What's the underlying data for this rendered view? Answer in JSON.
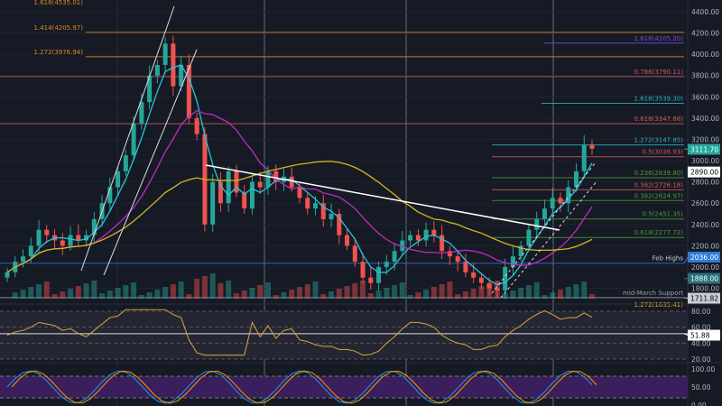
{
  "chart_data": {
    "type": "candlestick",
    "price_axis": {
      "ticks": [
        4400,
        4200,
        4000,
        3800,
        3600,
        3400,
        3200,
        3000,
        2800,
        2600,
        2400,
        2200,
        2000,
        1800
      ],
      "range": [
        1680,
        4500
      ]
    },
    "closes": [
      1950,
      2050,
      2100,
      2200,
      2350,
      2300,
      2250,
      2200,
      2300,
      2250,
      2300,
      2450,
      2600,
      2750,
      2900,
      3050,
      3350,
      3550,
      3800,
      3900,
      4100,
      3700,
      3900,
      3400,
      3250,
      2400,
      2800,
      2600,
      2900,
      2700,
      2550,
      2800,
      2750,
      2900,
      2800,
      2850,
      2750,
      2650,
      2550,
      2600,
      2450,
      2500,
      2300,
      2200,
      2050,
      1900,
      1850,
      2000,
      2050,
      2150,
      2250,
      2300,
      2250,
      2350,
      2300,
      2150,
      2100,
      2050,
      1950,
      1900,
      1850,
      1800,
      1780,
      2000,
      2100,
      2200,
      2350,
      2450,
      2550,
      2650,
      2600,
      2750,
      2900,
      3150,
      3111.7
    ],
    "levels": [
      {
        "label": "1.618(4535.01)",
        "price": 4535.01,
        "color": "#e08a1e"
      },
      {
        "label": "1.414(4205.97)",
        "price": 4205.97,
        "color": "#e08a1e"
      },
      {
        "label": "1.272(3976.94)",
        "price": 3976.94,
        "color": "#e08a1e"
      },
      {
        "label": "1.618(4105.20)",
        "price": 4105.2,
        "color": "#7b4fd6"
      },
      {
        "label": "0.786(3790.11)",
        "price": 3790.11,
        "color": "#d05a5a"
      },
      {
        "label": "1.618(3539.30)",
        "price": 3539.3,
        "color": "#26b3c4"
      },
      {
        "label": "0.618(3347.68)",
        "price": 3347.68,
        "color": "#d05a5a"
      },
      {
        "label": "1.272(3147.85)",
        "price": 3147.85,
        "color": "#26b3c4"
      },
      {
        "label": "0.5(3036.93)",
        "price": 3036.93,
        "color": "#d05a5a"
      },
      {
        "label": "0.236(2839.80)",
        "price": 2839.8,
        "color": "#4a9a3a"
      },
      {
        "label": "0.382(2726.18)",
        "price": 2726.18,
        "color": "#d05a5a"
      },
      {
        "label": "0.382(2624.97)",
        "price": 2624.97,
        "color": "#4a9a3a"
      },
      {
        "label": "0.5(2451.35)",
        "price": 2451.35,
        "color": "#4a9a3a"
      },
      {
        "label": "0.618(2277.72)",
        "price": 2277.72,
        "color": "#4a9a3a"
      },
      {
        "label": "Feb Highs",
        "price": 2036,
        "color": "#2f6fd6"
      },
      {
        "label": "mid-March Support",
        "price": 1711.82,
        "color": "#9aa0ab"
      },
      {
        "label": "1.272(1635.41)",
        "price": 1635.41,
        "color": "#e8b21e"
      }
    ],
    "price_tags": [
      {
        "value": "3111.70",
        "price": 3111.7,
        "bg": "#26a69a",
        "fg": "#ffffff"
      },
      {
        "value": "2890.00",
        "price": 2890,
        "bg": "#ffffff",
        "fg": "#000000"
      },
      {
        "value": "2036.00",
        "price": 2036,
        "bg": "#2f7bd6",
        "fg": "#ffffff"
      },
      {
        "value": "1888.00",
        "price": 1888,
        "bg": "#2e6f78",
        "fg": "#ffffff"
      },
      {
        "value": "1711.82",
        "price": 1711.82,
        "bg": "#c9ccd2",
        "fg": "#000000"
      }
    ],
    "rsi": {
      "ticks": [
        80,
        60,
        40,
        20
      ],
      "value": "51.88",
      "level": 51.88
    },
    "stoch": {
      "ticks": [
        100,
        50,
        0
      ]
    },
    "colors": {
      "up": "#26a69a",
      "down": "#ef5350"
    }
  }
}
